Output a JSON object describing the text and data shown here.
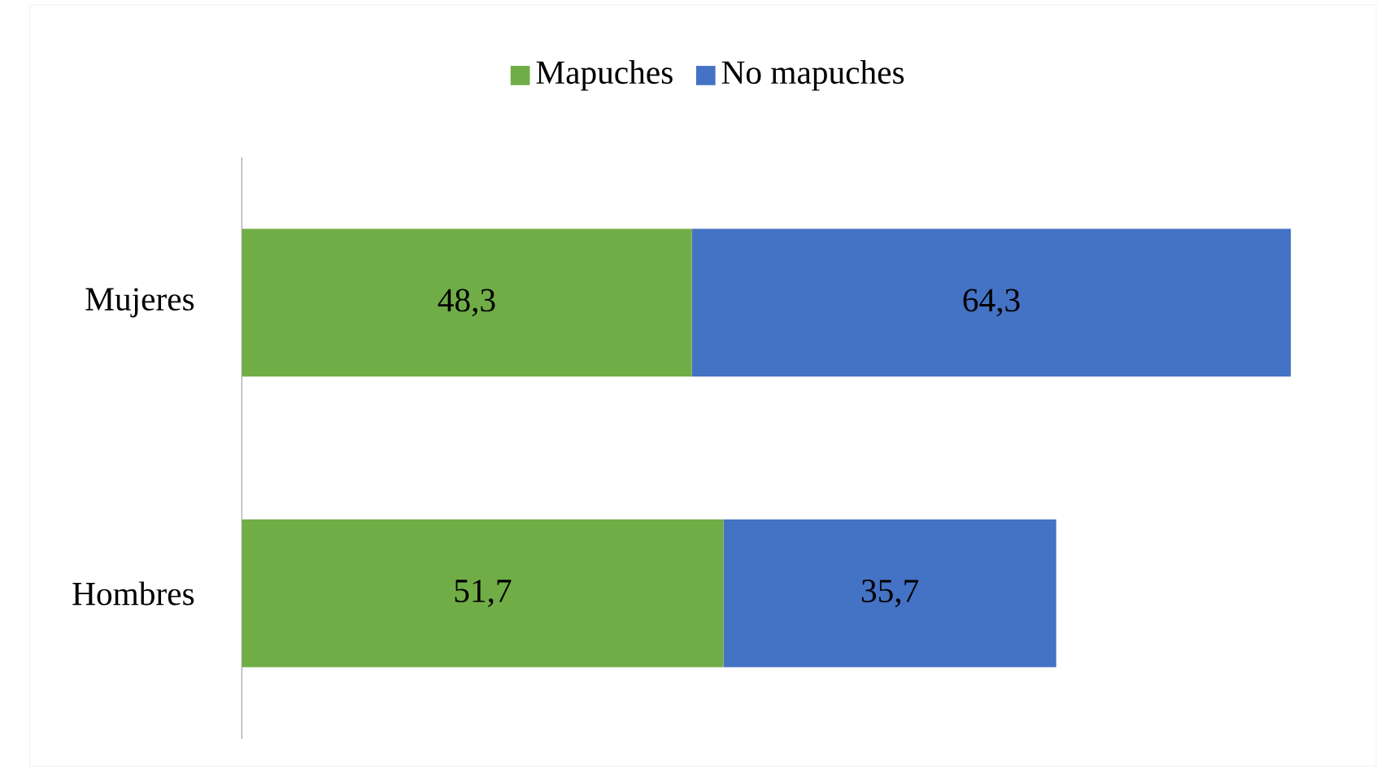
{
  "chart_data": {
    "type": "bar",
    "orientation": "horizontal",
    "stacked": true,
    "legend": "top",
    "categories": [
      "Mujeres",
      "Hombres"
    ],
    "series": [
      {
        "name": "Mapuches",
        "color": "#70ad47",
        "values": [
          48.3,
          51.7
        ],
        "value_labels": [
          "48,3",
          "51,7"
        ]
      },
      {
        "name": "No mapuches",
        "color": "#4472c4",
        "values": [
          64.3,
          35.7
        ],
        "value_labels": [
          "64,3",
          "35,7"
        ]
      }
    ]
  }
}
